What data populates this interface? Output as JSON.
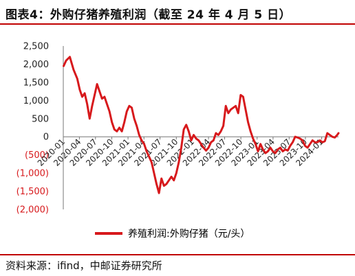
{
  "title": "图表4：外购仔猪养殖利润（截至 24 年 4 月 5 日）",
  "source": "资料来源：ifind，中邮证券研究所",
  "colors": {
    "line": "#d7191c",
    "negative_tick": "#d7191c",
    "accent": "#c00000"
  },
  "chart_data": {
    "type": "line",
    "title": "",
    "xlabel": "",
    "ylabel": "",
    "ylim": [
      -2000,
      2500
    ],
    "yticks": [
      {
        "value": 2500,
        "label": "2,500"
      },
      {
        "value": 2000,
        "label": "2,000"
      },
      {
        "value": 1500,
        "label": "1,500"
      },
      {
        "value": 1000,
        "label": "1,000"
      },
      {
        "value": 500,
        "label": "500"
      },
      {
        "value": 0,
        "label": "0"
      },
      {
        "value": -500,
        "label": "(500)"
      },
      {
        "value": -1000,
        "label": "(1,000)"
      },
      {
        "value": -1500,
        "label": "(1,500)"
      },
      {
        "value": -2000,
        "label": "(2,000)"
      }
    ],
    "xrange": [
      "2020-01-01",
      "2024-04-05"
    ],
    "xticks": [
      "2020-01",
      "2020-04",
      "2020-07",
      "2020-10",
      "2021-01",
      "2021-04",
      "2021-07",
      "2021-10",
      "2022-01",
      "2022-04",
      "2022-07",
      "2022-10",
      "2023-01",
      "2023-04",
      "2023-07",
      "2023-10",
      "2024-01"
    ],
    "grid": false,
    "legend_position": "bottom",
    "series": [
      {
        "name": "养殖利润:外购仔猪（元/头）",
        "points": [
          {
            "x": "2020-01-03",
            "y": 1950
          },
          {
            "x": "2020-01-17",
            "y": 2100
          },
          {
            "x": "2020-02-07",
            "y": 2200
          },
          {
            "x": "2020-02-28",
            "y": 1850
          },
          {
            "x": "2020-03-20",
            "y": 1600
          },
          {
            "x": "2020-04-03",
            "y": 1300
          },
          {
            "x": "2020-04-17",
            "y": 1100
          },
          {
            "x": "2020-05-01",
            "y": 1200
          },
          {
            "x": "2020-05-15",
            "y": 900
          },
          {
            "x": "2020-05-29",
            "y": 500
          },
          {
            "x": "2020-06-12",
            "y": 850
          },
          {
            "x": "2020-06-26",
            "y": 1150
          },
          {
            "x": "2020-07-10",
            "y": 1450
          },
          {
            "x": "2020-07-24",
            "y": 1250
          },
          {
            "x": "2020-08-07",
            "y": 1050
          },
          {
            "x": "2020-08-21",
            "y": 1100
          },
          {
            "x": "2020-09-04",
            "y": 900
          },
          {
            "x": "2020-09-18",
            "y": 700
          },
          {
            "x": "2020-10-02",
            "y": 400
          },
          {
            "x": "2020-10-16",
            "y": 200
          },
          {
            "x": "2020-10-30",
            "y": 150
          },
          {
            "x": "2020-11-13",
            "y": 250
          },
          {
            "x": "2020-11-27",
            "y": 150
          },
          {
            "x": "2020-12-11",
            "y": 400
          },
          {
            "x": "2020-12-25",
            "y": 700
          },
          {
            "x": "2021-01-08",
            "y": 850
          },
          {
            "x": "2021-01-22",
            "y": 800
          },
          {
            "x": "2021-02-05",
            "y": 500
          },
          {
            "x": "2021-02-19",
            "y": 300
          },
          {
            "x": "2021-03-05",
            "y": 50
          },
          {
            "x": "2021-03-19",
            "y": -100
          },
          {
            "x": "2021-04-02",
            "y": -200
          },
          {
            "x": "2021-04-16",
            "y": -400
          },
          {
            "x": "2021-04-30",
            "y": -550
          },
          {
            "x": "2021-05-14",
            "y": -700
          },
          {
            "x": "2021-05-28",
            "y": -1000
          },
          {
            "x": "2021-06-11",
            "y": -1300
          },
          {
            "x": "2021-06-25",
            "y": -1550
          },
          {
            "x": "2021-07-09",
            "y": -1150
          },
          {
            "x": "2021-07-23",
            "y": -1350
          },
          {
            "x": "2021-08-06",
            "y": -1300
          },
          {
            "x": "2021-08-20",
            "y": -1200
          },
          {
            "x": "2021-09-03",
            "y": -1100
          },
          {
            "x": "2021-09-17",
            "y": -1200
          },
          {
            "x": "2021-10-01",
            "y": -1000
          },
          {
            "x": "2021-10-15",
            "y": -700
          },
          {
            "x": "2021-10-29",
            "y": -300
          },
          {
            "x": "2021-11-12",
            "y": 200
          },
          {
            "x": "2021-11-26",
            "y": 330
          },
          {
            "x": "2021-12-10",
            "y": 150
          },
          {
            "x": "2021-12-24",
            "y": -100
          },
          {
            "x": "2022-01-07",
            "y": 50
          },
          {
            "x": "2022-01-21",
            "y": -50
          },
          {
            "x": "2022-02-04",
            "y": -100
          },
          {
            "x": "2022-02-18",
            "y": -200
          },
          {
            "x": "2022-03-04",
            "y": -300
          },
          {
            "x": "2022-03-18",
            "y": -380
          },
          {
            "x": "2022-04-01",
            "y": -300
          },
          {
            "x": "2022-04-15",
            "y": -150
          },
          {
            "x": "2022-04-29",
            "y": -100
          },
          {
            "x": "2022-05-13",
            "y": 100
          },
          {
            "x": "2022-05-27",
            "y": 50
          },
          {
            "x": "2022-06-10",
            "y": 150
          },
          {
            "x": "2022-06-24",
            "y": 300
          },
          {
            "x": "2022-07-08",
            "y": 850
          },
          {
            "x": "2022-07-22",
            "y": 650
          },
          {
            "x": "2022-08-05",
            "y": 750
          },
          {
            "x": "2022-08-19",
            "y": 800
          },
          {
            "x": "2022-09-02",
            "y": 850
          },
          {
            "x": "2022-09-16",
            "y": 650
          },
          {
            "x": "2022-09-30",
            "y": 1150
          },
          {
            "x": "2022-10-14",
            "y": 1100
          },
          {
            "x": "2022-10-28",
            "y": 750
          },
          {
            "x": "2022-11-11",
            "y": 400
          },
          {
            "x": "2022-11-25",
            "y": 150
          },
          {
            "x": "2022-12-09",
            "y": -50
          },
          {
            "x": "2022-12-23",
            "y": -200
          },
          {
            "x": "2023-01-06",
            "y": -400
          },
          {
            "x": "2023-01-20",
            "y": -200
          },
          {
            "x": "2023-02-03",
            "y": -350
          },
          {
            "x": "2023-02-17",
            "y": -450
          },
          {
            "x": "2023-03-03",
            "y": -400
          },
          {
            "x": "2023-03-17",
            "y": -300
          },
          {
            "x": "2023-03-31",
            "y": -400
          },
          {
            "x": "2023-04-14",
            "y": -450
          },
          {
            "x": "2023-04-28",
            "y": -350
          },
          {
            "x": "2023-05-12",
            "y": -300
          },
          {
            "x": "2023-05-26",
            "y": -400
          },
          {
            "x": "2023-06-09",
            "y": -350
          },
          {
            "x": "2023-06-23",
            "y": -380
          },
          {
            "x": "2023-07-07",
            "y": -250
          },
          {
            "x": "2023-07-21",
            "y": -150
          },
          {
            "x": "2023-08-04",
            "y": 0
          },
          {
            "x": "2023-08-18",
            "y": -20
          },
          {
            "x": "2023-09-01",
            "y": -50
          },
          {
            "x": "2023-09-15",
            "y": -100
          },
          {
            "x": "2023-09-29",
            "y": -250
          },
          {
            "x": "2023-10-13",
            "y": -300
          },
          {
            "x": "2023-10-27",
            "y": -200
          },
          {
            "x": "2023-11-10",
            "y": -100
          },
          {
            "x": "2023-11-24",
            "y": -150
          },
          {
            "x": "2023-12-08",
            "y": -150
          },
          {
            "x": "2023-12-22",
            "y": -100
          },
          {
            "x": "2024-01-05",
            "y": -150
          },
          {
            "x": "2024-01-19",
            "y": -120
          },
          {
            "x": "2024-02-02",
            "y": 100
          },
          {
            "x": "2024-02-16",
            "y": 50
          },
          {
            "x": "2024-03-01",
            "y": 0
          },
          {
            "x": "2024-03-15",
            "y": -20
          },
          {
            "x": "2024-03-29",
            "y": 50
          },
          {
            "x": "2024-04-05",
            "y": 100
          }
        ]
      }
    ]
  }
}
